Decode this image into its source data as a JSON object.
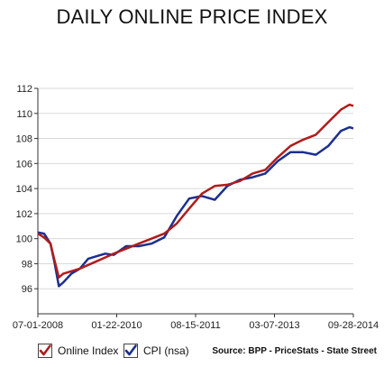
{
  "title": "DAILY ONLINE PRICE INDEX",
  "legend": {
    "online_label": "Online Index",
    "cpi_label": "CPI (nsa)",
    "source": "Source: BPP - PriceStats - State Street"
  },
  "colors": {
    "online": "#b01c1c",
    "cpi": "#1b2f8f",
    "grid": "#d9d9d9",
    "axis": "#333333"
  },
  "chart_data": {
    "type": "line",
    "title": "DAILY ONLINE PRICE INDEX",
    "xlabel": "",
    "ylabel": "",
    "x_ticks": [
      "07-01-2008",
      "01-22-2010",
      "08-15-2011",
      "03-07-2013",
      "09-28-2014"
    ],
    "xlim": [
      "07-01-2008",
      "09-28-2014"
    ],
    "ylim": [
      94,
      112
    ],
    "yticks": [
      96,
      98,
      100,
      102,
      104,
      106,
      108,
      110,
      112
    ],
    "grid": "horizontal",
    "legend_position": "bottom",
    "series": [
      {
        "name": "Online Index",
        "color": "#b01c1c",
        "points": [
          [
            "07-01-2008",
            100.4
          ],
          [
            "08-15-2008",
            100.1
          ],
          [
            "09-30-2008",
            99.6
          ],
          [
            "10-31-2008",
            98.2
          ],
          [
            "11-30-2008",
            96.9
          ],
          [
            "12-31-2008",
            97.2
          ],
          [
            "02-28-2009",
            97.4
          ],
          [
            "04-30-2009",
            97.6
          ],
          [
            "06-30-2009",
            97.9
          ],
          [
            "08-31-2009",
            98.2
          ],
          [
            "10-31-2009",
            98.5
          ],
          [
            "12-31-2009",
            98.8
          ],
          [
            "03-31-2010",
            99.2
          ],
          [
            "06-30-2010",
            99.6
          ],
          [
            "09-30-2010",
            100.0
          ],
          [
            "12-31-2010",
            100.4
          ],
          [
            "03-31-2011",
            101.2
          ],
          [
            "06-30-2011",
            102.4
          ],
          [
            "09-30-2011",
            103.6
          ],
          [
            "12-31-2011",
            104.2
          ],
          [
            "03-31-2012",
            104.3
          ],
          [
            "06-30-2012",
            104.6
          ],
          [
            "09-30-2012",
            105.2
          ],
          [
            "12-31-2012",
            105.5
          ],
          [
            "03-31-2013",
            106.5
          ],
          [
            "06-30-2013",
            107.4
          ],
          [
            "09-30-2013",
            107.9
          ],
          [
            "12-31-2013",
            108.3
          ],
          [
            "03-31-2014",
            109.3
          ],
          [
            "06-30-2014",
            110.3
          ],
          [
            "08-31-2014",
            110.7
          ],
          [
            "09-28-2014",
            110.6
          ]
        ]
      },
      {
        "name": "CPI (nsa)",
        "color": "#1b2f8f",
        "points": [
          [
            "07-01-2008",
            100.5
          ],
          [
            "08-15-2008",
            100.4
          ],
          [
            "09-30-2008",
            99.6
          ],
          [
            "10-31-2008",
            98.0
          ],
          [
            "11-30-2008",
            96.2
          ],
          [
            "12-31-2008",
            96.5
          ],
          [
            "02-28-2009",
            97.2
          ],
          [
            "04-30-2009",
            97.6
          ],
          [
            "06-30-2009",
            98.4
          ],
          [
            "08-31-2009",
            98.6
          ],
          [
            "10-31-2009",
            98.8
          ],
          [
            "12-31-2009",
            98.7
          ],
          [
            "03-31-2010",
            99.4
          ],
          [
            "06-30-2010",
            99.4
          ],
          [
            "09-30-2010",
            99.6
          ],
          [
            "12-31-2010",
            100.1
          ],
          [
            "03-31-2011",
            101.8
          ],
          [
            "06-30-2011",
            103.2
          ],
          [
            "09-30-2011",
            103.4
          ],
          [
            "12-31-2011",
            103.1
          ],
          [
            "03-31-2012",
            104.2
          ],
          [
            "06-30-2012",
            104.7
          ],
          [
            "09-30-2012",
            104.9
          ],
          [
            "12-31-2012",
            105.2
          ],
          [
            "03-31-2013",
            106.2
          ],
          [
            "06-30-2013",
            106.9
          ],
          [
            "09-30-2013",
            106.9
          ],
          [
            "12-31-2013",
            106.7
          ],
          [
            "03-31-2014",
            107.4
          ],
          [
            "06-30-2014",
            108.6
          ],
          [
            "08-31-2014",
            108.9
          ],
          [
            "09-28-2014",
            108.8
          ]
        ]
      }
    ]
  }
}
